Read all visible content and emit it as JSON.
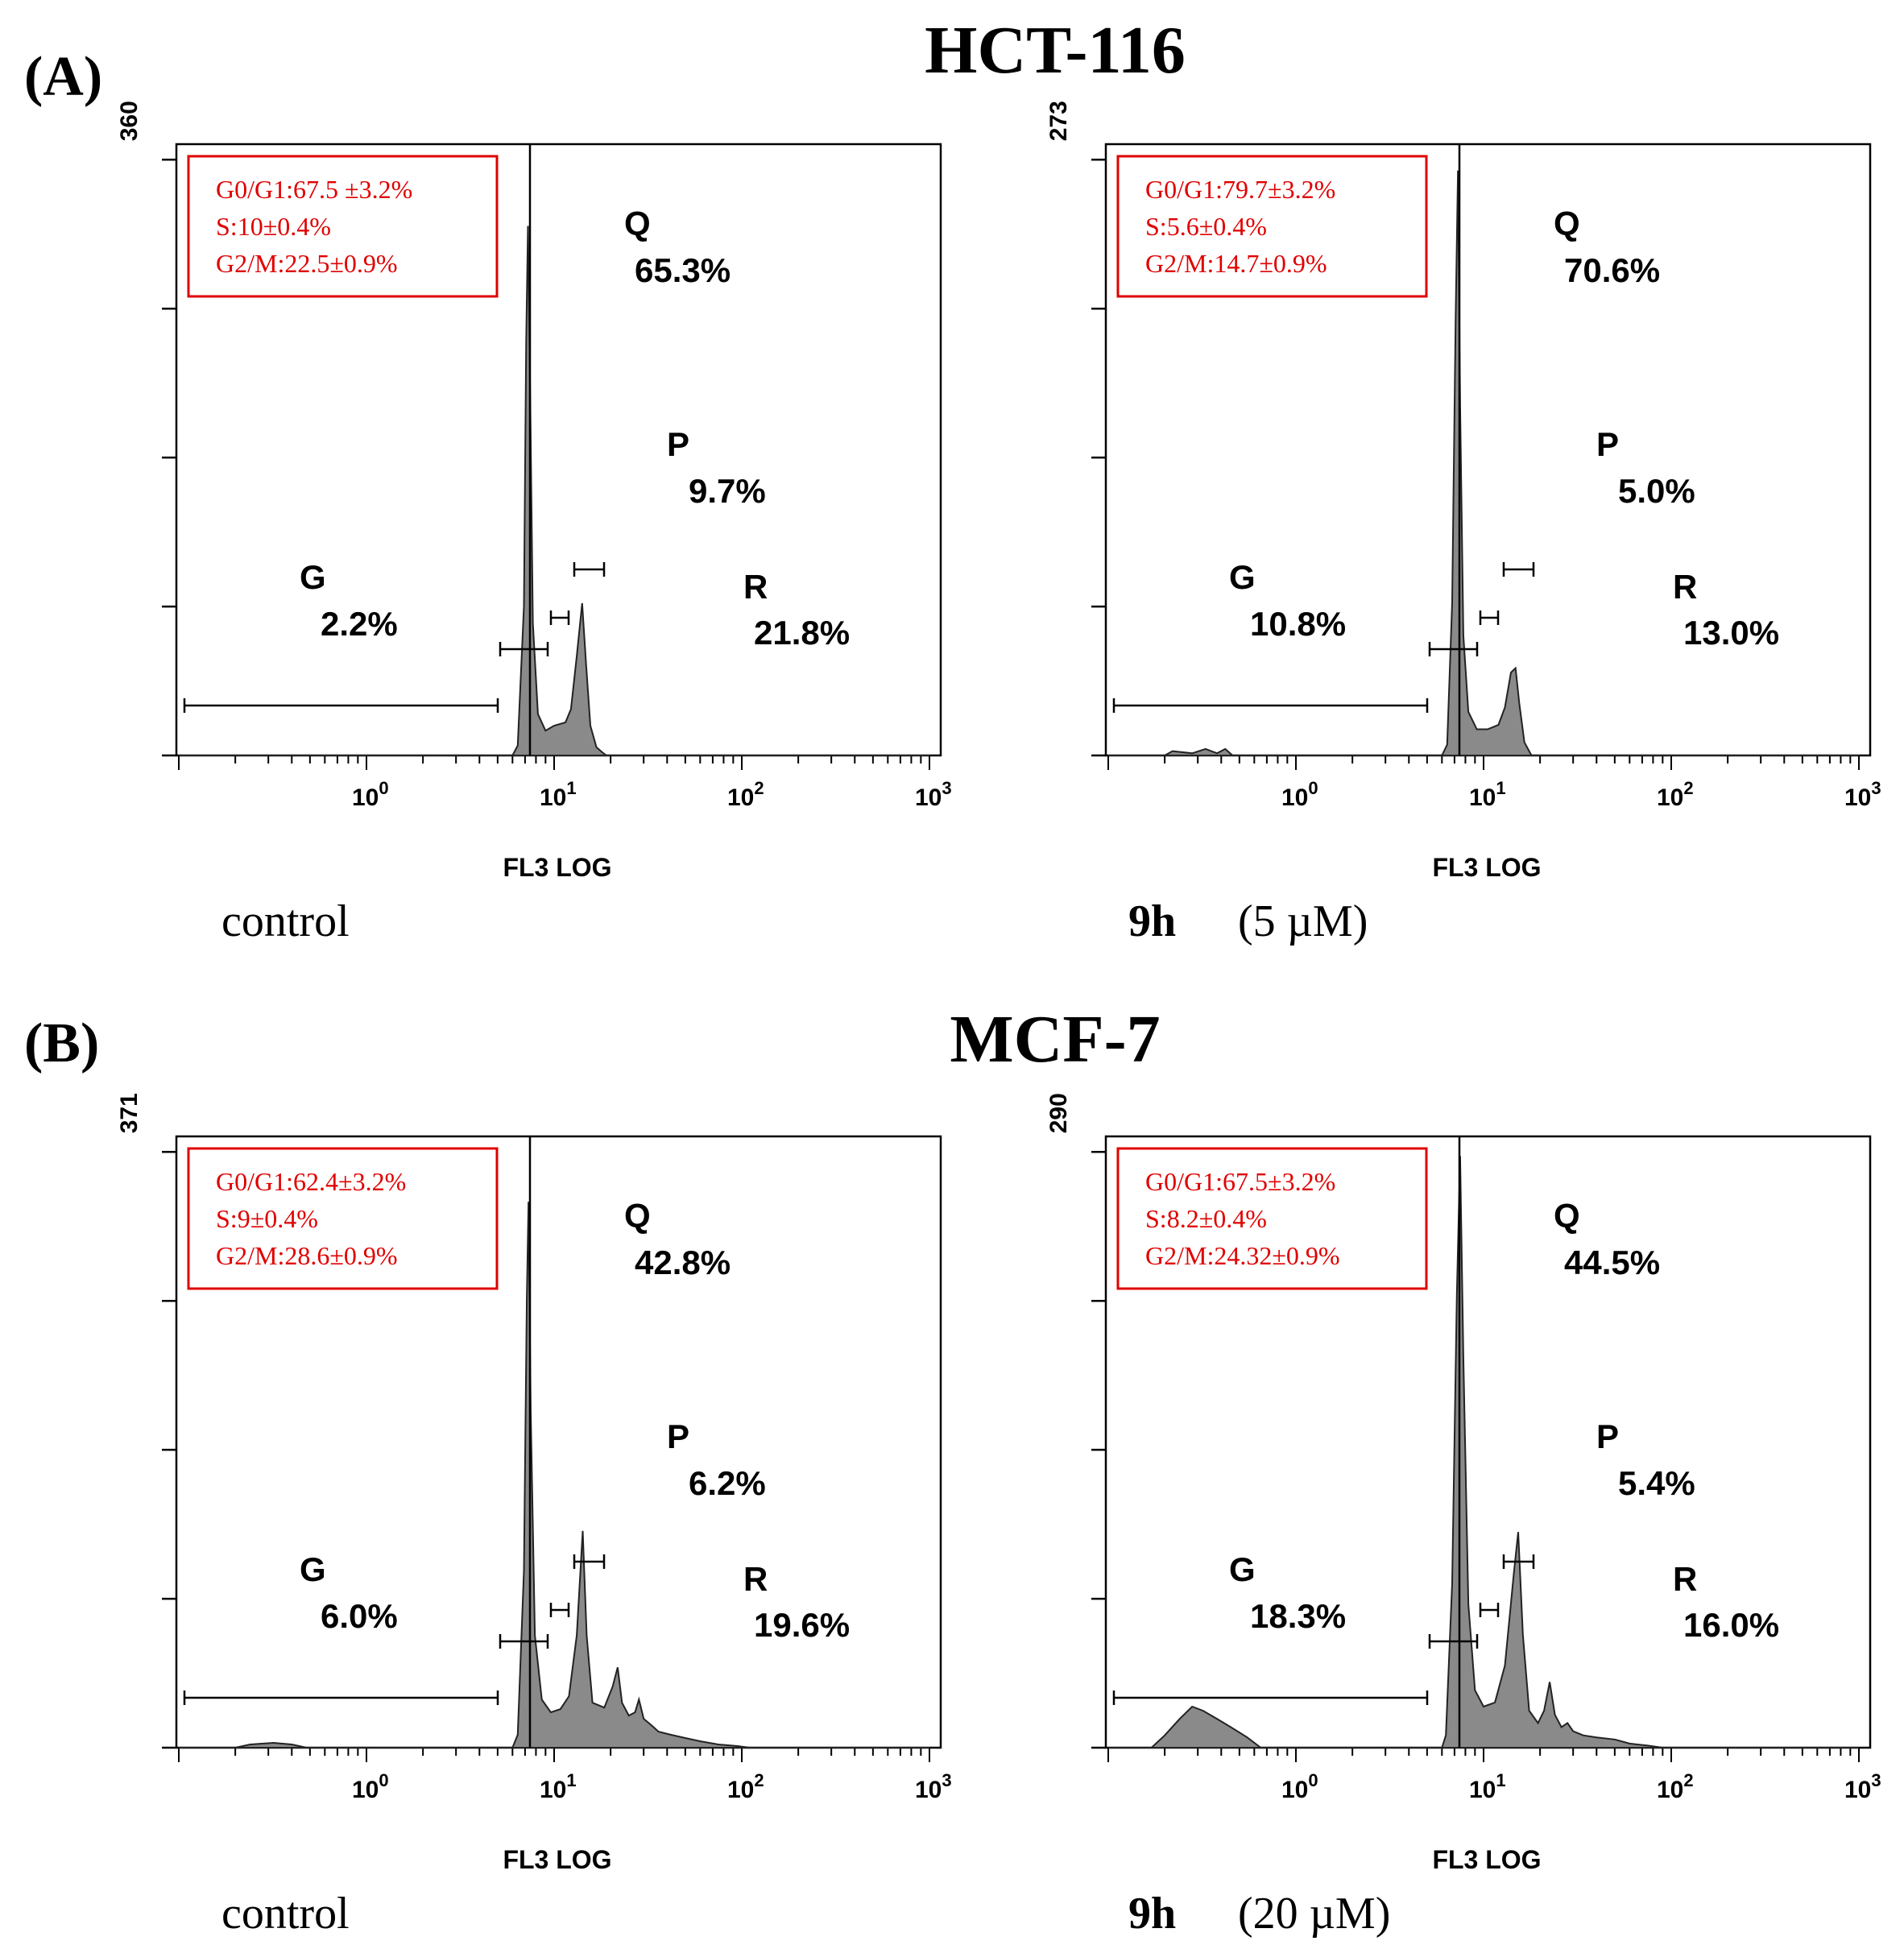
{
  "figure": {
    "panel_a_label": "(A)",
    "panel_a_title": "HCT-116",
    "panel_b_label": "(B)",
    "panel_b_title": "MCF-7"
  },
  "chart_data": [
    {
      "type": "area",
      "panel": "A",
      "cell_line": "HCT-116",
      "ymax_label": "360",
      "ylim": [
        0,
        360
      ],
      "xscale": "log",
      "xlim": [
        0.1,
        1000
      ],
      "xticks": [
        {
          "base": "10",
          "exp": "0",
          "value": 1
        },
        {
          "base": "10",
          "exp": "1",
          "value": 10
        },
        {
          "base": "10",
          "exp": "2",
          "value": 100
        },
        {
          "base": "10",
          "exp": "3",
          "value": 1000
        }
      ],
      "xlabel": "FL3 LOG",
      "condition": {
        "time": "",
        "label": "control"
      },
      "stats_box": {
        "g0g1": "G0/G1:67.5 ±3.2%",
        "s": "S:10±0.4%",
        "g2m": "G2/M:22.5±0.9%"
      },
      "gates": [
        {
          "name": "G",
          "pct": "2.2%"
        },
        {
          "name": "Q",
          "pct": "65.3%"
        },
        {
          "name": "P",
          "pct": "9.7%"
        },
        {
          "name": "R",
          "pct": "21.8%"
        }
      ],
      "histogram": [
        [
          0.1,
          0
        ],
        [
          6.0,
          0
        ],
        [
          6.4,
          6
        ],
        [
          6.9,
          90
        ],
        [
          7.1,
          250
        ],
        [
          7.25,
          320
        ],
        [
          7.45,
          220
        ],
        [
          7.7,
          80
        ],
        [
          8.2,
          25
        ],
        [
          9.0,
          15
        ],
        [
          10.0,
          18
        ],
        [
          11.5,
          20
        ],
        [
          12.3,
          28
        ],
        [
          13.2,
          60
        ],
        [
          14.1,
          92
        ],
        [
          14.8,
          55
        ],
        [
          15.6,
          18
        ],
        [
          16.8,
          5
        ],
        [
          18,
          2
        ],
        [
          19,
          0
        ],
        [
          1000,
          0
        ]
      ]
    },
    {
      "type": "area",
      "panel": "A",
      "cell_line": "HCT-116",
      "ymax_label": "273",
      "ylim": [
        0,
        273
      ],
      "xscale": "log",
      "xlim": [
        0.1,
        1000
      ],
      "xticks": [
        {
          "base": "10",
          "exp": "0",
          "value": 1
        },
        {
          "base": "10",
          "exp": "1",
          "value": 10
        },
        {
          "base": "10",
          "exp": "2",
          "value": 100
        },
        {
          "base": "10",
          "exp": "3",
          "value": 1000
        }
      ],
      "xlabel": "FL3 LOG",
      "condition": {
        "time": "9h",
        "label": "(5 µM)"
      },
      "stats_box": {
        "g0g1": "G0/G1:79.7±3.2%",
        "s": "S:5.6±0.4%",
        "g2m": "G2/M:14.7±0.9%"
      },
      "gates": [
        {
          "name": "G",
          "pct": "10.8%"
        },
        {
          "name": "Q",
          "pct": "70.6%"
        },
        {
          "name": "P",
          "pct": "5.0%"
        },
        {
          "name": "R",
          "pct": "13.0%"
        }
      ],
      "histogram": [
        [
          0.1,
          0
        ],
        [
          0.2,
          0
        ],
        [
          0.22,
          2
        ],
        [
          0.28,
          1
        ],
        [
          0.33,
          3
        ],
        [
          0.38,
          1
        ],
        [
          0.42,
          3
        ],
        [
          0.46,
          0
        ],
        [
          6.0,
          0
        ],
        [
          6.4,
          5
        ],
        [
          6.8,
          70
        ],
        [
          7.1,
          200
        ],
        [
          7.3,
          268
        ],
        [
          7.5,
          160
        ],
        [
          7.8,
          55
        ],
        [
          8.3,
          20
        ],
        [
          9.2,
          12
        ],
        [
          10.5,
          12
        ],
        [
          12,
          14
        ],
        [
          13,
          22
        ],
        [
          14,
          38
        ],
        [
          14.8,
          40
        ],
        [
          15.5,
          24
        ],
        [
          16.5,
          6
        ],
        [
          18,
          0
        ],
        [
          1000,
          0
        ]
      ]
    },
    {
      "type": "area",
      "panel": "B",
      "cell_line": "MCF-7",
      "ymax_label": "371",
      "ylim": [
        0,
        371
      ],
      "xscale": "log",
      "xlim": [
        0.1,
        1000
      ],
      "xticks": [
        {
          "base": "10",
          "exp": "0",
          "value": 1
        },
        {
          "base": "10",
          "exp": "1",
          "value": 10
        },
        {
          "base": "10",
          "exp": "2",
          "value": 100
        },
        {
          "base": "10",
          "exp": "3",
          "value": 1000
        }
      ],
      "xlabel": "FL3 LOG",
      "condition": {
        "time": "",
        "label": "control"
      },
      "stats_box": {
        "g0g1": "G0/G1:62.4±3.2%",
        "s": "S:9±0.4%",
        "g2m": "G2/M:28.6±0.9%"
      },
      "gates": [
        {
          "name": "G",
          "pct": "6.0%"
        },
        {
          "name": "Q",
          "pct": "42.8%"
        },
        {
          "name": "P",
          "pct": "6.2%"
        },
        {
          "name": "R",
          "pct": "19.6%"
        }
      ],
      "histogram": [
        [
          0.1,
          0
        ],
        [
          0.2,
          0
        ],
        [
          0.24,
          2
        ],
        [
          0.32,
          3
        ],
        [
          0.4,
          2
        ],
        [
          0.48,
          0
        ],
        [
          6.0,
          0
        ],
        [
          6.4,
          8
        ],
        [
          6.9,
          110
        ],
        [
          7.15,
          280
        ],
        [
          7.3,
          340
        ],
        [
          7.5,
          210
        ],
        [
          7.9,
          70
        ],
        [
          8.6,
          30
        ],
        [
          9.6,
          22
        ],
        [
          10.8,
          24
        ],
        [
          12,
          32
        ],
        [
          13.2,
          70
        ],
        [
          14.2,
          135
        ],
        [
          14.9,
          70
        ],
        [
          16,
          28
        ],
        [
          18.5,
          25
        ],
        [
          20.5,
          38
        ],
        [
          21.8,
          50
        ],
        [
          23,
          28
        ],
        [
          25,
          20
        ],
        [
          27,
          22
        ],
        [
          28.3,
          30
        ],
        [
          30,
          18
        ],
        [
          33,
          14
        ],
        [
          36,
          10
        ],
        [
          42,
          8
        ],
        [
          50,
          6
        ],
        [
          60,
          4
        ],
        [
          75,
          2
        ],
        [
          95,
          1
        ],
        [
          110,
          0
        ],
        [
          1000,
          0
        ]
      ]
    },
    {
      "type": "area",
      "panel": "B",
      "cell_line": "MCF-7",
      "ymax_label": "290",
      "ylim": [
        0,
        290
      ],
      "xscale": "log",
      "xlim": [
        0.1,
        1000
      ],
      "xticks": [
        {
          "base": "10",
          "exp": "0",
          "value": 1
        },
        {
          "base": "10",
          "exp": "1",
          "value": 10
        },
        {
          "base": "10",
          "exp": "2",
          "value": 100
        },
        {
          "base": "10",
          "exp": "3",
          "value": 1000
        }
      ],
      "xlabel": "FL3 LOG",
      "condition": {
        "time": "9h",
        "label": "(20 µM)"
      },
      "stats_box": {
        "g0g1": "G0/G1:67.5±3.2%",
        "s": "S:8.2±0.4%",
        "g2m": "G2/M:24.32±0.9%"
      },
      "gates": [
        {
          "name": "G",
          "pct": "18.3%"
        },
        {
          "name": "Q",
          "pct": "44.5%"
        },
        {
          "name": "P",
          "pct": "5.4%"
        },
        {
          "name": "R",
          "pct": "16.0%"
        }
      ],
      "histogram": [
        [
          0.1,
          0
        ],
        [
          0.17,
          0
        ],
        [
          0.2,
          6
        ],
        [
          0.24,
          14
        ],
        [
          0.28,
          20
        ],
        [
          0.32,
          18
        ],
        [
          0.38,
          14
        ],
        [
          0.45,
          10
        ],
        [
          0.55,
          5
        ],
        [
          0.65,
          0
        ],
        [
          6.0,
          0
        ],
        [
          6.3,
          6
        ],
        [
          6.8,
          80
        ],
        [
          7.2,
          220
        ],
        [
          7.5,
          288
        ],
        [
          7.8,
          190
        ],
        [
          8.3,
          70
        ],
        [
          9,
          28
        ],
        [
          10,
          20
        ],
        [
          11.5,
          22
        ],
        [
          13,
          40
        ],
        [
          14.5,
          85
        ],
        [
          15.3,
          105
        ],
        [
          16.2,
          55
        ],
        [
          17.5,
          18
        ],
        [
          19.5,
          12
        ],
        [
          21,
          18
        ],
        [
          22.5,
          32
        ],
        [
          24,
          16
        ],
        [
          26,
          10
        ],
        [
          28,
          12
        ],
        [
          30,
          8
        ],
        [
          34,
          6
        ],
        [
          40,
          5
        ],
        [
          50,
          4
        ],
        [
          60,
          2
        ],
        [
          75,
          1
        ],
        [
          90,
          0
        ],
        [
          1000,
          0
        ]
      ]
    }
  ]
}
